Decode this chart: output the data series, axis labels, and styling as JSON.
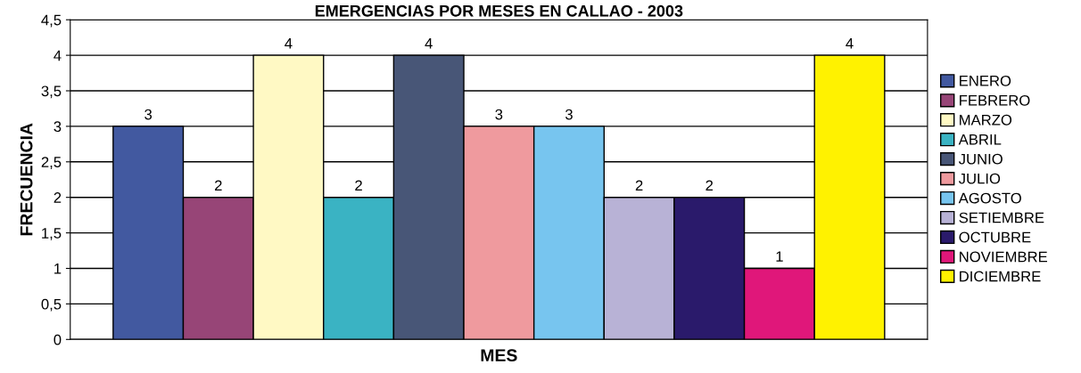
{
  "chart_data": {
    "type": "bar",
    "title": "EMERGENCIAS POR MESES EN CALLAO - 2003",
    "xlabel": "MES",
    "ylabel": "FRECUENCIA",
    "categories": [
      null
    ],
    "series": [
      {
        "name": "ENERO",
        "color": "#4259a0",
        "values": [
          3
        ]
      },
      {
        "name": "FEBRERO",
        "color": "#974577",
        "values": [
          2
        ]
      },
      {
        "name": "MARZO",
        "color": "#fff9c4",
        "values": [
          4
        ]
      },
      {
        "name": "ABRIL",
        "color": "#3ab3c3",
        "values": [
          2
        ]
      },
      {
        "name": "JUNIO",
        "color": "#485677",
        "values": [
          4
        ]
      },
      {
        "name": "JULIO",
        "color": "#ef9a9e",
        "values": [
          3
        ]
      },
      {
        "name": "AGOSTO",
        "color": "#77c5ef",
        "values": [
          3
        ]
      },
      {
        "name": "SETIEMBRE",
        "color": "#b8b2d6",
        "values": [
          2
        ]
      },
      {
        "name": "OCTUBRE",
        "color": "#2a1a6b",
        "values": [
          2
        ]
      },
      {
        "name": "NOVIEMBRE",
        "color": "#e0177a",
        "values": [
          1
        ]
      },
      {
        "name": "DICIEMBRE",
        "color": "#fff200",
        "values": [
          4
        ]
      }
    ],
    "ylim": [
      0,
      4.5
    ],
    "yticks": [
      0,
      {
        "value": 0.5,
        "label": "0,5"
      },
      1,
      {
        "value": 1.5,
        "label": "1,5"
      },
      2,
      {
        "value": 2.5,
        "label": "2,5"
      },
      3,
      {
        "value": 3.5,
        "label": "3,5"
      },
      4,
      {
        "value": 4.5,
        "label": "4,5"
      }
    ],
    "grid": "y",
    "legend": "right",
    "data_labels": true
  }
}
